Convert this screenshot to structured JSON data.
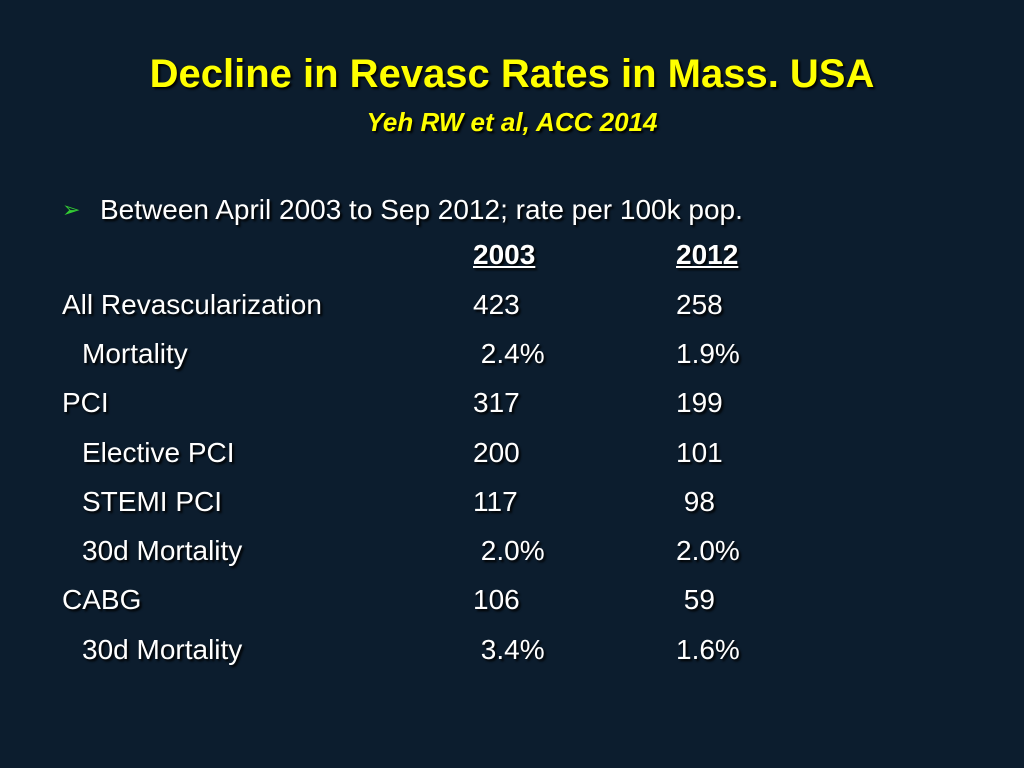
{
  "slide": {
    "title": "Decline in Revasc Rates in Mass. USA",
    "subtitle": "Yeh RW et al, ACC 2014",
    "bullet_marker": "➢",
    "bullet_text": "Between April 2003 to Sep 2012; rate per 100k pop.",
    "colors": {
      "background": "#0c1d2e",
      "title": "#ffff00",
      "text": "#ffffff",
      "bullet_marker": "#33cc33"
    }
  },
  "table": {
    "headers": [
      "2003",
      "2012"
    ],
    "rows": [
      {
        "label": "All Revascularization",
        "v2003": "423",
        "v2012": "258",
        "indent": false
      },
      {
        "label": "Mortality",
        "v2003": " 2.4%",
        "v2012": "1.9%",
        "indent": true
      },
      {
        "label": "PCI",
        "v2003": "317",
        "v2012": "199",
        "indent": false
      },
      {
        "label": "Elective PCI",
        "v2003": "200",
        "v2012": "101",
        "indent": true
      },
      {
        "label": "STEMI PCI",
        "v2003": "117",
        "v2012": " 98",
        "indent": true
      },
      {
        "label": "30d Mortality",
        "v2003": " 2.0%",
        "v2012": "2.0%",
        "indent": true
      },
      {
        "label": "CABG",
        "v2003": "106",
        "v2012": " 59",
        "indent": false
      },
      {
        "label": "30d Mortality",
        "v2003": " 3.4%",
        "v2012": "1.6%",
        "indent": true
      }
    ]
  }
}
